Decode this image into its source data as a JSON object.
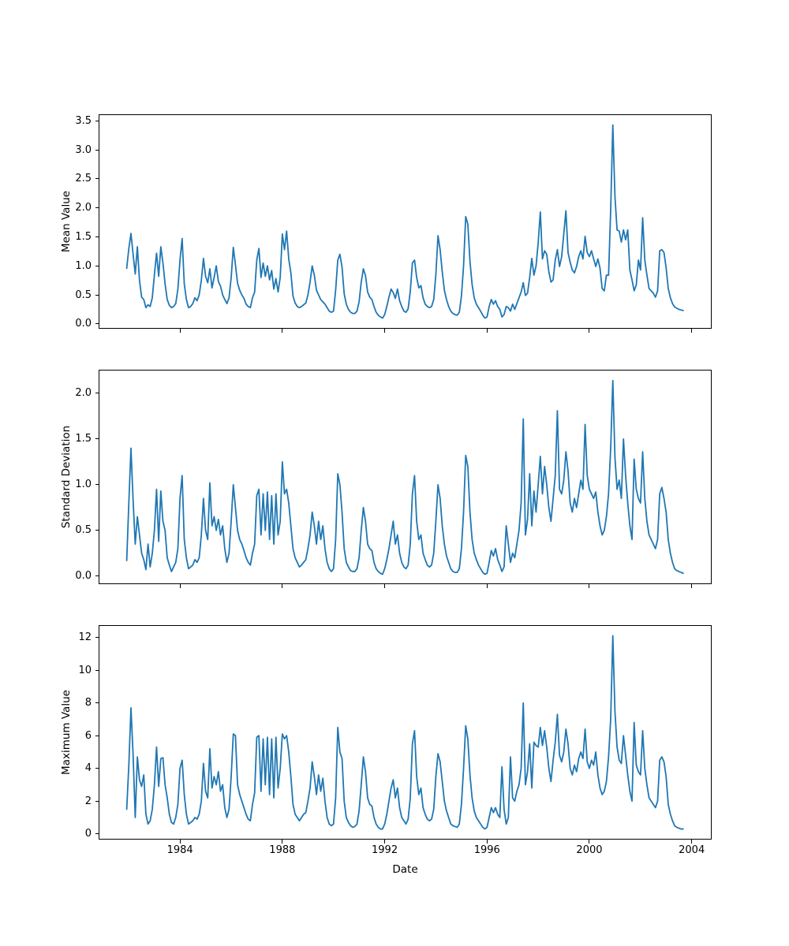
{
  "figure": {
    "background": "#ffffff",
    "line_color": "#1f77b4",
    "spine_color": "#000000",
    "xlabel": "Date"
  },
  "chart_data": [
    {
      "type": "line",
      "title": "",
      "ylabel": "Mean Value",
      "xlabel": "",
      "x_start": 1981.9167,
      "x_step": 0.0833333,
      "xlim": [
        1980.85,
        2004.75
      ],
      "ylim": [
        -0.07,
        3.6
      ],
      "grid": false,
      "legend": null,
      "xtick_values": [
        1984,
        1988,
        1992,
        1996,
        2000,
        2004
      ],
      "xtick_labels": [
        "1984",
        "1988",
        "1992",
        "1996",
        "2000",
        "2004"
      ],
      "show_xtick_labels": false,
      "ytick_values": [
        0.0,
        0.5,
        1.0,
        1.5,
        2.0,
        2.5,
        3.0,
        3.5
      ],
      "ytick_labels": [
        "0.0",
        "0.5",
        "1.0",
        "1.5",
        "2.0",
        "2.5",
        "3.0",
        "3.5"
      ],
      "series": [
        {
          "name": "mean",
          "color": "#1f77b4",
          "values": [
            0.96,
            1.3,
            1.56,
            1.2,
            0.86,
            1.33,
            0.75,
            0.46,
            0.42,
            0.28,
            0.33,
            0.3,
            0.45,
            0.85,
            1.22,
            0.82,
            1.33,
            1.05,
            0.69,
            0.42,
            0.32,
            0.28,
            0.3,
            0.35,
            0.6,
            1.1,
            1.47,
            0.69,
            0.42,
            0.28,
            0.3,
            0.35,
            0.45,
            0.4,
            0.5,
            0.75,
            1.13,
            0.82,
            0.71,
            0.95,
            0.62,
            0.8,
            1.0,
            0.73,
            0.65,
            0.5,
            0.42,
            0.35,
            0.45,
            0.8,
            1.32,
            1.02,
            0.7,
            0.58,
            0.5,
            0.44,
            0.34,
            0.3,
            0.28,
            0.45,
            0.55,
            1.1,
            1.3,
            0.8,
            1.05,
            0.82,
            1.0,
            0.76,
            0.92,
            0.6,
            0.78,
            0.55,
            0.8,
            1.55,
            1.28,
            1.6,
            1.12,
            0.88,
            0.48,
            0.36,
            0.3,
            0.28,
            0.3,
            0.33,
            0.36,
            0.5,
            0.72,
            1.0,
            0.84,
            0.58,
            0.5,
            0.42,
            0.38,
            0.34,
            0.28,
            0.22,
            0.2,
            0.22,
            0.58,
            1.1,
            1.2,
            0.98,
            0.52,
            0.34,
            0.25,
            0.2,
            0.18,
            0.18,
            0.22,
            0.38,
            0.72,
            0.95,
            0.83,
            0.55,
            0.46,
            0.42,
            0.3,
            0.2,
            0.15,
            0.12,
            0.1,
            0.16,
            0.3,
            0.46,
            0.6,
            0.54,
            0.44,
            0.6,
            0.4,
            0.3,
            0.22,
            0.2,
            0.26,
            0.56,
            1.05,
            1.1,
            0.8,
            0.62,
            0.66,
            0.45,
            0.34,
            0.3,
            0.28,
            0.3,
            0.42,
            0.85,
            1.52,
            1.28,
            0.9,
            0.58,
            0.42,
            0.3,
            0.22,
            0.18,
            0.16,
            0.15,
            0.2,
            0.48,
            1.0,
            1.85,
            1.72,
            1.08,
            0.68,
            0.45,
            0.34,
            0.28,
            0.22,
            0.15,
            0.1,
            0.12,
            0.3,
            0.42,
            0.34,
            0.4,
            0.3,
            0.25,
            0.12,
            0.16,
            0.3,
            0.28,
            0.22,
            0.34,
            0.25,
            0.35,
            0.45,
            0.55,
            0.71,
            0.49,
            0.53,
            0.8,
            1.13,
            0.84,
            1.0,
            1.4,
            1.93,
            1.12,
            1.26,
            1.2,
            0.9,
            0.72,
            0.76,
            1.1,
            1.28,
            0.99,
            1.16,
            1.55,
            1.95,
            1.23,
            1.06,
            0.93,
            0.88,
            0.99,
            1.16,
            1.26,
            1.12,
            1.51,
            1.23,
            1.16,
            1.26,
            1.12,
            0.99,
            1.12,
            0.96,
            0.61,
            0.57,
            0.84,
            0.84,
            1.96,
            3.43,
            2.2,
            1.62,
            1.6,
            1.41,
            1.62,
            1.45,
            1.62,
            0.93,
            0.76,
            0.57,
            0.67,
            1.1,
            0.93,
            1.83,
            1.1,
            0.84,
            0.61,
            0.57,
            0.53,
            0.46,
            0.57,
            1.26,
            1.28,
            1.23,
            0.97,
            0.61,
            0.45,
            0.35,
            0.29,
            0.27,
            0.25,
            0.24,
            0.23
          ]
        }
      ]
    },
    {
      "type": "line",
      "title": "",
      "ylabel": "Standard Deviation",
      "xlabel": "",
      "x_start": 1981.9167,
      "x_step": 0.0833333,
      "xlim": [
        1980.85,
        2004.75
      ],
      "ylim": [
        -0.08,
        2.25
      ],
      "grid": false,
      "legend": null,
      "xtick_values": [
        1984,
        1988,
        1992,
        1996,
        2000,
        2004
      ],
      "xtick_labels": [
        "1984",
        "1988",
        "1992",
        "1996",
        "2000",
        "2004"
      ],
      "show_xtick_labels": false,
      "ytick_values": [
        0.0,
        0.5,
        1.0,
        1.5,
        2.0
      ],
      "ytick_labels": [
        "0.0",
        "0.5",
        "1.0",
        "1.5",
        "2.0"
      ],
      "series": [
        {
          "name": "std",
          "color": "#1f77b4",
          "values": [
            0.17,
            0.8,
            1.4,
            0.83,
            0.35,
            0.65,
            0.45,
            0.25,
            0.18,
            0.07,
            0.35,
            0.1,
            0.25,
            0.5,
            0.95,
            0.38,
            0.93,
            0.6,
            0.5,
            0.2,
            0.12,
            0.05,
            0.1,
            0.15,
            0.3,
            0.85,
            1.1,
            0.4,
            0.2,
            0.08,
            0.1,
            0.12,
            0.18,
            0.15,
            0.2,
            0.45,
            0.85,
            0.5,
            0.4,
            1.02,
            0.55,
            0.65,
            0.5,
            0.62,
            0.45,
            0.55,
            0.3,
            0.15,
            0.25,
            0.6,
            1.0,
            0.75,
            0.5,
            0.4,
            0.35,
            0.28,
            0.2,
            0.15,
            0.12,
            0.25,
            0.35,
            0.88,
            0.95,
            0.45,
            0.9,
            0.5,
            0.92,
            0.4,
            0.88,
            0.35,
            0.9,
            0.45,
            0.6,
            1.25,
            0.9,
            0.95,
            0.8,
            0.55,
            0.3,
            0.2,
            0.15,
            0.1,
            0.12,
            0.15,
            0.18,
            0.3,
            0.45,
            0.7,
            0.55,
            0.35,
            0.6,
            0.4,
            0.55,
            0.3,
            0.15,
            0.08,
            0.05,
            0.08,
            0.4,
            1.12,
            1.0,
            0.7,
            0.3,
            0.15,
            0.1,
            0.06,
            0.05,
            0.05,
            0.08,
            0.2,
            0.5,
            0.75,
            0.6,
            0.35,
            0.3,
            0.28,
            0.15,
            0.08,
            0.05,
            0.03,
            0.02,
            0.08,
            0.18,
            0.3,
            0.45,
            0.6,
            0.35,
            0.45,
            0.25,
            0.15,
            0.1,
            0.08,
            0.12,
            0.35,
            0.9,
            1.1,
            0.6,
            0.4,
            0.45,
            0.25,
            0.18,
            0.12,
            0.1,
            0.12,
            0.25,
            0.6,
            1.0,
            0.85,
            0.55,
            0.35,
            0.22,
            0.15,
            0.08,
            0.05,
            0.04,
            0.04,
            0.08,
            0.3,
            0.7,
            1.32,
            1.2,
            0.7,
            0.4,
            0.25,
            0.18,
            0.12,
            0.08,
            0.04,
            0.02,
            0.03,
            0.15,
            0.28,
            0.22,
            0.3,
            0.18,
            0.12,
            0.05,
            0.1,
            0.55,
            0.35,
            0.15,
            0.25,
            0.2,
            0.35,
            0.5,
            0.8,
            1.72,
            0.45,
            0.62,
            1.12,
            0.55,
            0.93,
            0.7,
            1.0,
            1.31,
            0.9,
            1.2,
            1.0,
            0.75,
            0.6,
            0.85,
            1.1,
            1.81,
            0.95,
            0.9,
            1.05,
            1.36,
            1.15,
            0.8,
            0.7,
            0.85,
            0.75,
            0.9,
            1.05,
            0.95,
            1.66,
            1.1,
            0.95,
            0.9,
            0.85,
            0.92,
            0.7,
            0.55,
            0.45,
            0.5,
            0.65,
            0.9,
            1.4,
            2.14,
            1.3,
            0.95,
            1.05,
            0.85,
            1.5,
            1.1,
            0.8,
            0.55,
            0.4,
            1.28,
            0.95,
            0.85,
            0.8,
            1.36,
            0.85,
            0.6,
            0.45,
            0.4,
            0.35,
            0.3,
            0.4,
            0.9,
            0.97,
            0.85,
            0.7,
            0.4,
            0.25,
            0.15,
            0.08,
            0.06,
            0.05,
            0.04,
            0.03
          ]
        }
      ]
    },
    {
      "type": "line",
      "title": "",
      "ylabel": "Maximum Value",
      "xlabel": "Date",
      "x_start": 1981.9167,
      "x_step": 0.0833333,
      "xlim": [
        1980.85,
        2004.75
      ],
      "ylim": [
        -0.3,
        12.7
      ],
      "grid": false,
      "legend": null,
      "xtick_values": [
        1984,
        1988,
        1992,
        1996,
        2000,
        2004
      ],
      "xtick_labels": [
        "1984",
        "1988",
        "1992",
        "1996",
        "2000",
        "2004"
      ],
      "show_xtick_labels": true,
      "ytick_values": [
        0,
        2,
        4,
        6,
        8,
        10,
        12
      ],
      "ytick_labels": [
        "0",
        "2",
        "4",
        "6",
        "8",
        "10",
        "12"
      ],
      "series": [
        {
          "name": "max",
          "color": "#1f77b4",
          "values": [
            1.5,
            4.2,
            7.7,
            4.8,
            1.0,
            4.7,
            3.3,
            2.9,
            3.6,
            1.2,
            0.6,
            0.8,
            1.5,
            3.0,
            5.3,
            2.9,
            4.6,
            4.65,
            3.0,
            2.2,
            1.2,
            0.7,
            0.6,
            1.0,
            1.8,
            4.0,
            4.5,
            2.4,
            1.2,
            0.6,
            0.7,
            0.8,
            1.0,
            0.9,
            1.2,
            2.0,
            4.3,
            2.6,
            2.2,
            5.2,
            2.8,
            3.5,
            3.0,
            3.8,
            2.6,
            3.0,
            1.6,
            1.0,
            1.5,
            3.5,
            6.1,
            6.0,
            3.0,
            2.4,
            2.0,
            1.6,
            1.2,
            0.9,
            0.8,
            1.8,
            2.5,
            5.9,
            6.0,
            2.6,
            5.8,
            3.0,
            5.9,
            2.4,
            5.8,
            2.2,
            5.9,
            2.8,
            4.0,
            6.1,
            5.8,
            6.0,
            5.0,
            3.5,
            1.8,
            1.2,
            1.0,
            0.8,
            1.0,
            1.2,
            1.3,
            2.0,
            2.8,
            4.4,
            3.5,
            2.4,
            3.6,
            2.6,
            3.4,
            2.0,
            1.0,
            0.6,
            0.5,
            0.6,
            2.2,
            6.5,
            5.0,
            4.6,
            2.0,
            1.0,
            0.7,
            0.5,
            0.4,
            0.45,
            0.6,
            1.4,
            3.0,
            4.7,
            3.8,
            2.2,
            1.8,
            1.7,
            1.0,
            0.6,
            0.4,
            0.3,
            0.3,
            0.6,
            1.2,
            2.0,
            2.8,
            3.3,
            2.2,
            2.8,
            1.6,
            1.0,
            0.8,
            0.6,
            0.9,
            2.2,
            5.5,
            6.3,
            3.5,
            2.4,
            2.8,
            1.6,
            1.2,
            0.9,
            0.8,
            0.9,
            1.5,
            3.5,
            4.9,
            4.4,
            3.2,
            2.0,
            1.4,
            1.0,
            0.6,
            0.5,
            0.45,
            0.4,
            0.6,
            1.8,
            4.0,
            6.6,
            5.8,
            3.6,
            2.2,
            1.4,
            1.0,
            0.8,
            0.6,
            0.4,
            0.3,
            0.4,
            1.0,
            1.6,
            1.3,
            1.6,
            1.2,
            1.0,
            4.1,
            1.5,
            0.6,
            1.0,
            4.7,
            2.2,
            2.0,
            2.6,
            3.0,
            4.0,
            8.0,
            3.0,
            3.8,
            5.5,
            2.8,
            5.6,
            5.4,
            5.3,
            6.5,
            5.4,
            6.3,
            5.3,
            4.0,
            3.2,
            4.5,
            5.6,
            7.3,
            4.8,
            4.4,
            5.0,
            6.4,
            5.5,
            4.0,
            3.6,
            4.2,
            3.8,
            4.6,
            5.0,
            4.6,
            6.4,
            4.4,
            4.0,
            4.5,
            4.2,
            5.0,
            3.6,
            2.8,
            2.4,
            2.6,
            3.2,
            4.7,
            7.0,
            12.1,
            7.5,
            5.3,
            4.5,
            4.3,
            6.0,
            4.8,
            3.6,
            2.6,
            2.0,
            6.8,
            4.2,
            3.8,
            3.6,
            6.3,
            4.0,
            3.0,
            2.2,
            2.0,
            1.8,
            1.6,
            2.0,
            4.5,
            4.7,
            4.4,
            3.5,
            1.8,
            1.2,
            0.8,
            0.5,
            0.4,
            0.35,
            0.3,
            0.3
          ]
        }
      ]
    }
  ]
}
